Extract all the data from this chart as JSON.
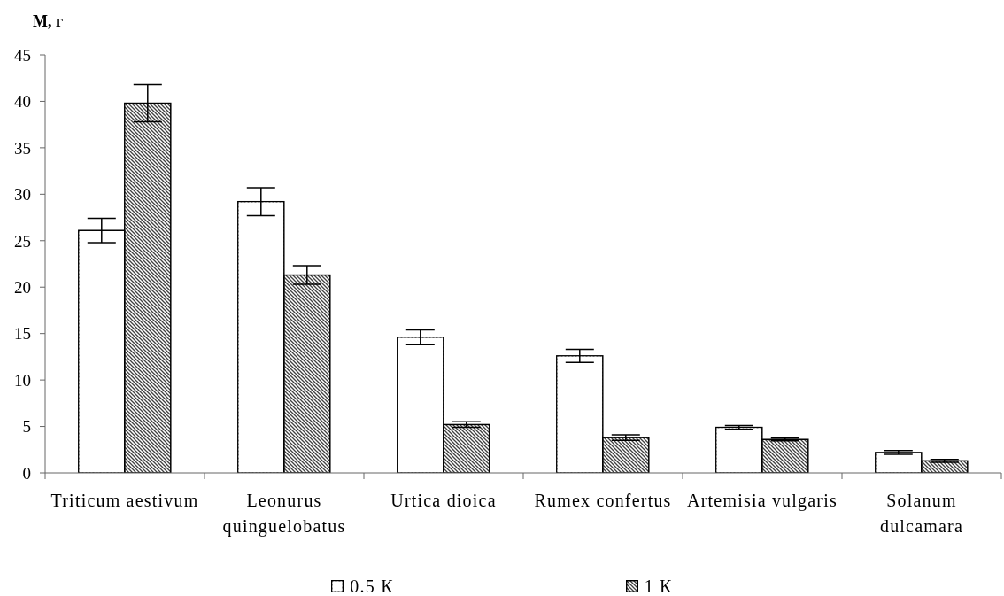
{
  "chart_data": {
    "type": "bar",
    "ylabel": "М, г",
    "categories": [
      "Triticum aestivum",
      "Leonurus quinguelobatus",
      "Urtica dioica",
      "Rumex confertus",
      "Artemisia vulgaris",
      "Solanum dulcamara"
    ],
    "series": [
      {
        "name": "0.5 К",
        "color": "#ffffff",
        "values": [
          26.1,
          29.2,
          14.6,
          12.6,
          4.9,
          2.2
        ],
        "errors": [
          1.3,
          1.5,
          0.8,
          0.7,
          0.2,
          0.2
        ]
      },
      {
        "name": "1 К",
        "color": "#404040",
        "values": [
          39.8,
          21.3,
          5.2,
          3.8,
          3.6,
          1.3
        ],
        "errors": [
          2.0,
          1.0,
          0.3,
          0.3,
          0.15,
          0.15
        ]
      }
    ],
    "ylim": [
      0,
      45
    ],
    "yticks": [
      0,
      5,
      10,
      15,
      20,
      25,
      30,
      35,
      40,
      45
    ],
    "legend": "bottom"
  }
}
